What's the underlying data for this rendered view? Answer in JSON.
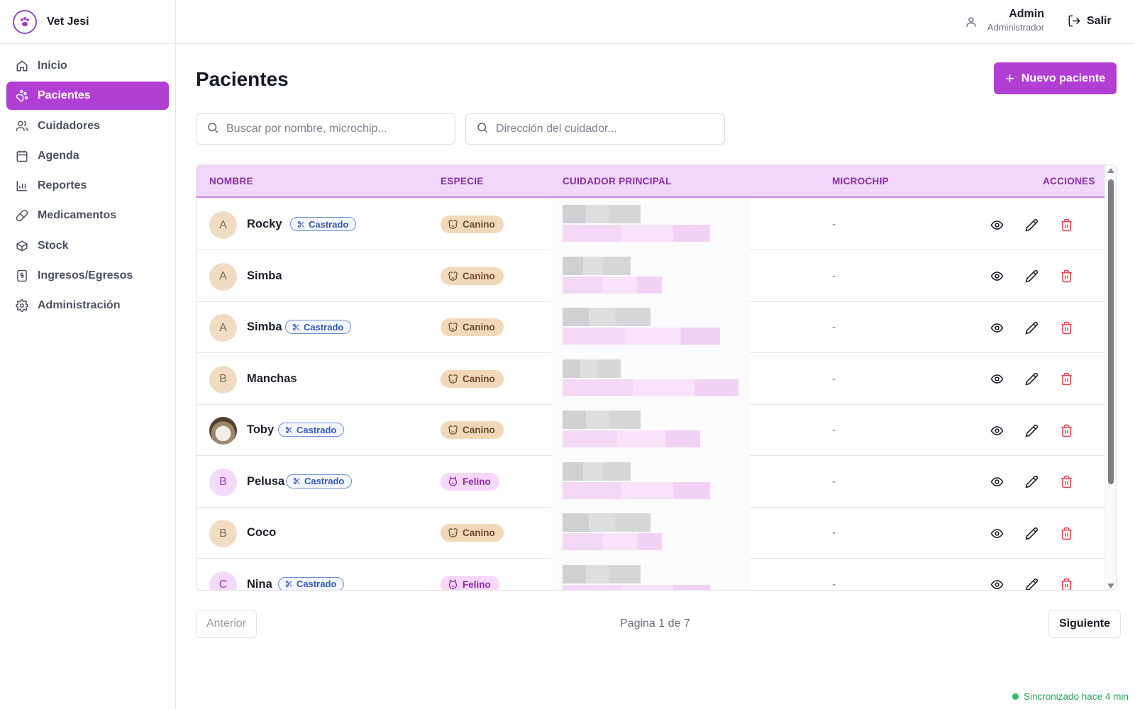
{
  "brand": {
    "name": "Vet Jesi"
  },
  "sidebar": {
    "items": [
      {
        "label": "Inicio",
        "icon": "home-icon",
        "active": false
      },
      {
        "label": "Pacientes",
        "icon": "paw-icon",
        "active": true
      },
      {
        "label": "Cuidadores",
        "icon": "users-icon",
        "active": false
      },
      {
        "label": "Agenda",
        "icon": "calendar-icon",
        "active": false
      },
      {
        "label": "Reportes",
        "icon": "bar-chart-icon",
        "active": false
      },
      {
        "label": "Medicamentos",
        "icon": "pill-icon",
        "active": false
      },
      {
        "label": "Stock",
        "icon": "box-icon",
        "active": false
      },
      {
        "label": "Ingresos/Egresos",
        "icon": "receipt-icon",
        "active": false
      },
      {
        "label": "Administración",
        "icon": "gear-icon",
        "active": false
      }
    ]
  },
  "header": {
    "user_name": "Admin",
    "user_role": "Administrador",
    "logout_label": "Salir"
  },
  "main": {
    "title": "Pacientes",
    "new_button": "Nuevo paciente",
    "search_placeholder": "Buscar por nombre, microchip...",
    "address_placeholder": "Dirección del cuidador..."
  },
  "table": {
    "headers": {
      "name": "NOMBRE",
      "species": "ESPECIE",
      "owner": "CUIDADOR PRINCIPAL",
      "microchip": "MICROCHIP",
      "actions": "ACCIONES"
    },
    "castrado_label": "Castrado",
    "rows": [
      {
        "initial": "A",
        "avatar": "tan",
        "name": "Rocky",
        "castrado": true,
        "species": "Canino",
        "microchip": "-"
      },
      {
        "initial": "A",
        "avatar": "tan",
        "name": "Simba",
        "castrado": false,
        "species": "Canino",
        "microchip": "-"
      },
      {
        "initial": "A",
        "avatar": "tan",
        "name": "Simba",
        "castrado": true,
        "species": "Canino",
        "microchip": "-"
      },
      {
        "initial": "B",
        "avatar": "tan",
        "name": "Manchas",
        "castrado": false,
        "species": "Canino",
        "microchip": "-"
      },
      {
        "initial": "",
        "avatar": "photo",
        "name": "Toby",
        "castrado": true,
        "species": "Canino",
        "microchip": "-"
      },
      {
        "initial": "B",
        "avatar": "pink",
        "name": "Pelusa",
        "castrado": true,
        "species": "Felino",
        "microchip": "-"
      },
      {
        "initial": "B",
        "avatar": "tan",
        "name": "Coco",
        "castrado": false,
        "species": "Canino",
        "microchip": "-"
      },
      {
        "initial": "C",
        "avatar": "pink",
        "name": "Nina",
        "castrado": true,
        "species": "Felino",
        "microchip": "-"
      }
    ]
  },
  "pagination": {
    "prev_label": "Anterior",
    "next_label": "Siguiente",
    "info": "Pagina 1 de 7"
  },
  "status": {
    "sync": "Sincronizado hace 4 min"
  },
  "colors": {
    "accent": "#b23fd4",
    "header_bg": "#f1d8fb",
    "danger": "#e0464f",
    "success": "#23a55a"
  }
}
